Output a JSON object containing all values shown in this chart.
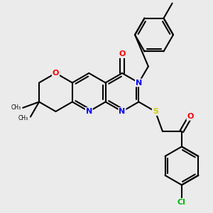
{
  "bg_color": "#ebebeb",
  "bond_color": "#000000",
  "bond_lw": 1.5,
  "atom_colors": {
    "N": "#0000ff",
    "O": "#ff0000",
    "S": "#cccc00",
    "Cl": "#00bb00",
    "C": "#000000"
  },
  "font_size": 7.5,
  "figsize": [
    3.0,
    3.0
  ],
  "dpi": 100
}
